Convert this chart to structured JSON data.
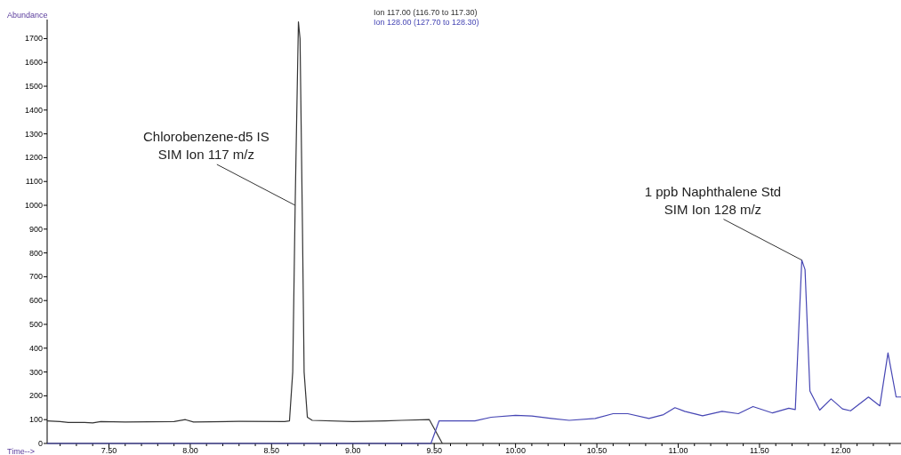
{
  "chart_data": {
    "type": "line",
    "xlabel": "Time-->",
    "ylabel": "Abundance",
    "xlim": [
      7.12,
      12.37
    ],
    "ylim": [
      0,
      1780
    ],
    "xticks": [
      {
        "value": 7.2,
        "label": null
      },
      {
        "value": 7.3,
        "label": null
      },
      {
        "value": 7.4,
        "label": null
      },
      {
        "value": 7.5,
        "label": "7.50"
      },
      {
        "value": 7.6,
        "label": null
      },
      {
        "value": 7.7,
        "label": null
      },
      {
        "value": 7.8,
        "label": null
      },
      {
        "value": 7.9,
        "label": null
      },
      {
        "value": 8,
        "label": "8.00"
      },
      {
        "value": 8.1,
        "label": null
      },
      {
        "value": 8.2,
        "label": null
      },
      {
        "value": 8.3,
        "label": null
      },
      {
        "value": 8.4,
        "label": null
      },
      {
        "value": 8.5,
        "label": "8.50"
      },
      {
        "value": 8.6,
        "label": null
      },
      {
        "value": 8.7,
        "label": null
      },
      {
        "value": 8.8,
        "label": null
      },
      {
        "value": 8.9,
        "label": null
      },
      {
        "value": 9,
        "label": "9.00"
      },
      {
        "value": 9.1,
        "label": null
      },
      {
        "value": 9.2,
        "label": null
      },
      {
        "value": 9.3,
        "label": null
      },
      {
        "value": 9.4,
        "label": null
      },
      {
        "value": 9.5,
        "label": "9.50"
      },
      {
        "value": 9.6,
        "label": null
      },
      {
        "value": 9.7,
        "label": null
      },
      {
        "value": 9.8,
        "label": null
      },
      {
        "value": 9.9,
        "label": null
      },
      {
        "value": 10,
        "label": "10.00"
      },
      {
        "value": 10.1,
        "label": null
      },
      {
        "value": 10.2,
        "label": null
      },
      {
        "value": 10.3,
        "label": null
      },
      {
        "value": 10.4,
        "label": null
      },
      {
        "value": 10.5,
        "label": "10.50"
      },
      {
        "value": 10.6,
        "label": null
      },
      {
        "value": 10.7,
        "label": null
      },
      {
        "value": 10.8,
        "label": null
      },
      {
        "value": 10.9,
        "label": null
      },
      {
        "value": 11,
        "label": "11.00"
      },
      {
        "value": 11.1,
        "label": null
      },
      {
        "value": 11.2,
        "label": null
      },
      {
        "value": 11.3,
        "label": null
      },
      {
        "value": 11.4,
        "label": null
      },
      {
        "value": 11.5,
        "label": "11.50"
      },
      {
        "value": 11.6,
        "label": null
      },
      {
        "value": 11.7,
        "label": null
      },
      {
        "value": 11.8,
        "label": null
      },
      {
        "value": 11.9,
        "label": null
      },
      {
        "value": 12,
        "label": "12.00"
      },
      {
        "value": 12.1,
        "label": null
      },
      {
        "value": 12.2,
        "label": null
      },
      {
        "value": 12.3,
        "label": null
      }
    ],
    "yticks": [
      0,
      100,
      200,
      300,
      400,
      500,
      600,
      700,
      800,
      900,
      1000,
      1100,
      1200,
      1300,
      1400,
      1500,
      1600,
      1700
    ],
    "grid": false,
    "legend": "top",
    "marker": "none",
    "line_style": "solid",
    "series": [
      {
        "name": "Ion 117.00 (116.70 to 117.30)",
        "color": "#333333",
        "x": [
          7.12,
          7.2,
          7.25,
          7.35,
          7.4,
          7.45,
          7.6,
          7.9,
          7.97,
          8.02,
          8.3,
          8.58,
          8.61,
          8.63,
          8.645,
          8.65,
          8.665,
          8.675,
          8.69,
          8.7,
          8.72,
          8.75,
          9.0,
          9.2,
          9.3,
          9.47,
          9.55
        ],
        "values": [
          95,
          92,
          88,
          88,
          86,
          92,
          90,
          92,
          100,
          90,
          93,
          92,
          95,
          300,
          1000,
          1200,
          1770,
          1700,
          900,
          300,
          110,
          97,
          92,
          95,
          97,
          100,
          0
        ]
      },
      {
        "name": "Ion 128.00 (127.70 to 128.30)",
        "color": "#4646b4",
        "x": [
          7.12,
          9.48,
          9.53,
          9.75,
          9.85,
          10.0,
          10.1,
          10.22,
          10.33,
          10.49,
          10.6,
          10.69,
          10.82,
          10.91,
          10.98,
          11.04,
          11.15,
          11.27,
          11.37,
          11.46,
          11.58,
          11.68,
          11.72,
          11.76,
          11.78,
          11.81,
          11.87,
          11.94,
          12.01,
          12.06,
          12.17,
          12.24,
          12.29,
          12.34,
          12.37
        ],
        "values": [
          0,
          0,
          95,
          95,
          110,
          118,
          115,
          105,
          97,
          105,
          125,
          125,
          105,
          121,
          150,
          135,
          116,
          135,
          125,
          155,
          128,
          148,
          142,
          770,
          730,
          220,
          140,
          187,
          145,
          137,
          195,
          158,
          380,
          195,
          195
        ]
      }
    ],
    "annotations": [
      {
        "text": "Chlorobenzene-d5 IS\nSIM Ion 117 m/z",
        "x": 8.645,
        "y": 1000
      },
      {
        "text": "1 ppb Naphthalene Std\nSIM Ion 128 m/z",
        "x": 11.76,
        "y": 770
      }
    ]
  }
}
